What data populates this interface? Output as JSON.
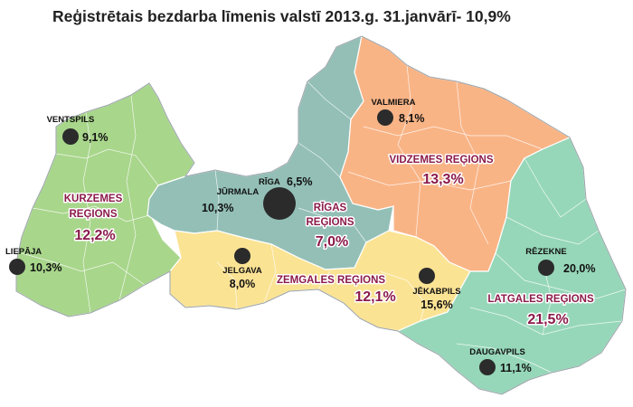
{
  "title": "Reģistrētais bezdarba līmenis valstī 2013.g. 31.janvārī- 10,9%",
  "colors": {
    "kurzeme": "#a8d68b",
    "riga": "#93bfb6",
    "vidzeme": "#f9b486",
    "zemgale": "#fbe394",
    "latgale": "#96d7b9",
    "accent_text": "#8b1a4a",
    "city_dot": "#2b2b2b"
  },
  "regions": {
    "kurzeme": {
      "name_line1": "KURZEMES",
      "name_line2": "REĢIONS",
      "rate": "12,2%"
    },
    "riga": {
      "name_line1": "RĪGAS",
      "name_line2": "REĢIONS",
      "rate": "7,0%"
    },
    "vidzeme": {
      "name": "VIDZEMES REĢIONS",
      "rate": "13,3%"
    },
    "zemgale": {
      "name": "ZEMGALES REĢIONS",
      "rate": "12,1%"
    },
    "latgale": {
      "name": "LATGALES REĢIONS",
      "rate": "21,5%"
    }
  },
  "cities": {
    "ventspils": {
      "name": "VENTSPILS",
      "rate": "9,1%"
    },
    "liepaja": {
      "name": "LIEPĀJA",
      "rate": "10,3%"
    },
    "jurmala": {
      "name": "JŪRMALA",
      "rate": "10,3%"
    },
    "riga": {
      "name": "RĪGA",
      "rate": "6,5%"
    },
    "jelgava": {
      "name": "JELGAVA",
      "rate": "8,0%"
    },
    "valmiera": {
      "name": "VALMIERA",
      "rate": "8,1%"
    },
    "jekabpils": {
      "name": "JĒKABPILS",
      "rate": "15,6%"
    },
    "rezekne": {
      "name": "RĒZEKNE",
      "rate": "20,0%"
    },
    "daugavpils": {
      "name": "DAUGAVPILS",
      "rate": "11,1%"
    }
  }
}
